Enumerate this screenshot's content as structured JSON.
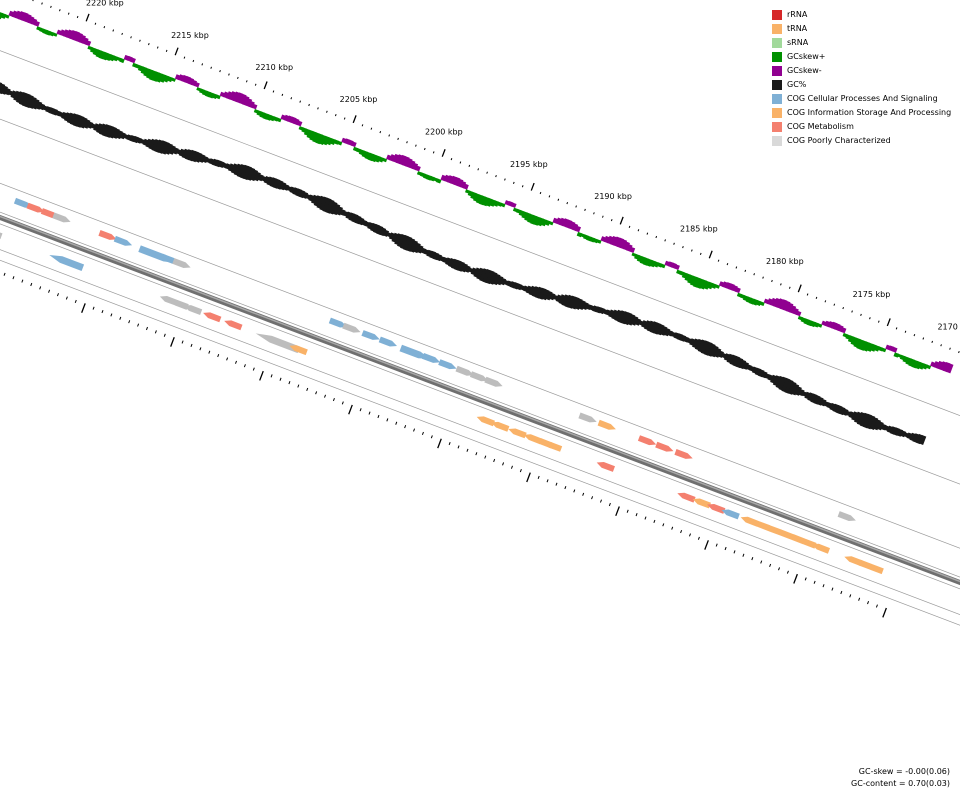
{
  "coordinate_labels": [
    "2220 kbp",
    "2215 kbp",
    "2210 kbp",
    "2205 kbp",
    "2200 kbp",
    "2195 kbp",
    "2190 kbp",
    "2185 kbp",
    "2180 kbp",
    "2175 kbp",
    "2170 kbp"
  ],
  "legend": [
    {
      "label": "rRNA",
      "color": "#d62728"
    },
    {
      "label": "tRNA",
      "color": "#f9b268"
    },
    {
      "label": "sRNA",
      "color": "#a1d99b"
    },
    {
      "label": "GCskew+",
      "color": "#009000"
    },
    {
      "label": "GCskew-",
      "color": "#900090"
    },
    {
      "label": "GC%",
      "color": "#1a1a1a"
    },
    {
      "label": "COG Cellular Processes And Signaling",
      "color": "#7fb0d5"
    },
    {
      "label": "COG Information Storage And Processing",
      "color": "#f9b268"
    },
    {
      "label": "COG Metabolism",
      "color": "#f4806f"
    },
    {
      "label": "COG Poorly Characterized",
      "color": "#d9d9d9"
    }
  ],
  "stats": {
    "gc_skew": "GC-skew = -0.00(0.06)",
    "gc_content": "GC-content = 0.70(0.03)"
  },
  "features": [
    {
      "t": 0.01,
      "strand": "+",
      "cat": "poor"
    },
    {
      "t": 0.05,
      "strand": "+",
      "cat": "poor"
    },
    {
      "t": 0.02,
      "strand": "-",
      "cat": "meta",
      "len": 0.03
    },
    {
      "t": 0.048,
      "strand": "-",
      "cat": "meta"
    },
    {
      "t": 0.06,
      "strand": "-",
      "cat": "info"
    },
    {
      "t": 0.072,
      "strand": "-",
      "cat": "poor"
    },
    {
      "t": 0.09,
      "strand": "+",
      "cat": "cell"
    },
    {
      "t": 0.103,
      "strand": "+",
      "cat": "meta"
    },
    {
      "t": 0.118,
      "strand": "+",
      "cat": "meta"
    },
    {
      "t": 0.13,
      "strand": "+",
      "cat": "poor"
    },
    {
      "t": 0.14,
      "strand": "-",
      "cat": "cell",
      "len": 0.035
    },
    {
      "t": 0.178,
      "strand": "+",
      "cat": "meta"
    },
    {
      "t": 0.194,
      "strand": "+",
      "cat": "cell"
    },
    {
      "t": 0.22,
      "strand": "+",
      "cat": "cell",
      "len": 0.04
    },
    {
      "t": 0.243,
      "strand": "+",
      "cat": "cell"
    },
    {
      "t": 0.255,
      "strand": "+",
      "cat": "poor"
    },
    {
      "t": 0.255,
      "strand": "-",
      "cat": "poor"
    },
    {
      "t": 0.266,
      "strand": "-",
      "cat": "poor"
    },
    {
      "t": 0.28,
      "strand": "-",
      "cat": "poor"
    },
    {
      "t": 0.3,
      "strand": "-",
      "cat": "meta"
    },
    {
      "t": 0.322,
      "strand": "-",
      "cat": "meta"
    },
    {
      "t": 0.355,
      "strand": "-",
      "cat": "poor",
      "len": 0.045
    },
    {
      "t": 0.39,
      "strand": "-",
      "cat": "info"
    },
    {
      "t": 0.418,
      "strand": "+",
      "cat": "cell"
    },
    {
      "t": 0.432,
      "strand": "+",
      "cat": "poor"
    },
    {
      "t": 0.452,
      "strand": "+",
      "cat": "cell"
    },
    {
      "t": 0.47,
      "strand": "+",
      "cat": "cell"
    },
    {
      "t": 0.492,
      "strand": "+",
      "cat": "cell",
      "len": 0.03
    },
    {
      "t": 0.515,
      "strand": "+",
      "cat": "cell"
    },
    {
      "t": 0.532,
      "strand": "+",
      "cat": "cell"
    },
    {
      "t": 0.55,
      "strand": "+",
      "cat": "poor"
    },
    {
      "t": 0.565,
      "strand": "+",
      "cat": "poor"
    },
    {
      "t": 0.58,
      "strand": "+",
      "cat": "poor"
    },
    {
      "t": 0.585,
      "strand": "-",
      "cat": "info"
    },
    {
      "t": 0.6,
      "strand": "-",
      "cat": "info"
    },
    {
      "t": 0.618,
      "strand": "-",
      "cat": "info"
    },
    {
      "t": 0.634,
      "strand": "-",
      "cat": "info"
    },
    {
      "t": 0.645,
      "strand": "-",
      "cat": "info"
    },
    {
      "t": 0.655,
      "strand": "-",
      "cat": "info"
    },
    {
      "t": 0.678,
      "strand": "+",
      "cat": "poor"
    },
    {
      "t": 0.698,
      "strand": "+",
      "cat": "info"
    },
    {
      "t": 0.71,
      "strand": "-",
      "cat": "meta"
    },
    {
      "t": 0.74,
      "strand": "+",
      "cat": "meta"
    },
    {
      "t": 0.758,
      "strand": "+",
      "cat": "meta"
    },
    {
      "t": 0.778,
      "strand": "+",
      "cat": "meta"
    },
    {
      "t": 0.794,
      "strand": "-",
      "cat": "meta"
    },
    {
      "t": 0.81,
      "strand": "-",
      "cat": "info"
    },
    {
      "t": 0.825,
      "strand": "-",
      "cat": "meta"
    },
    {
      "t": 0.84,
      "strand": "-",
      "cat": "cell"
    },
    {
      "t": 0.86,
      "strand": "-",
      "cat": "info"
    },
    {
      "t": 0.872,
      "strand": "-",
      "cat": "info"
    },
    {
      "t": 0.884,
      "strand": "-",
      "cat": "info"
    },
    {
      "t": 0.896,
      "strand": "-",
      "cat": "info"
    },
    {
      "t": 0.908,
      "strand": "-",
      "cat": "info"
    },
    {
      "t": 0.92,
      "strand": "-",
      "cat": "info"
    },
    {
      "t": 0.934,
      "strand": "-",
      "cat": "info"
    },
    {
      "t": 0.948,
      "strand": "+",
      "cat": "poor"
    },
    {
      "t": 0.968,
      "strand": "-",
      "cat": "info"
    },
    {
      "t": 0.978,
      "strand": "-",
      "cat": "info"
    },
    {
      "t": 0.99,
      "strand": "-",
      "cat": "info"
    }
  ]
}
